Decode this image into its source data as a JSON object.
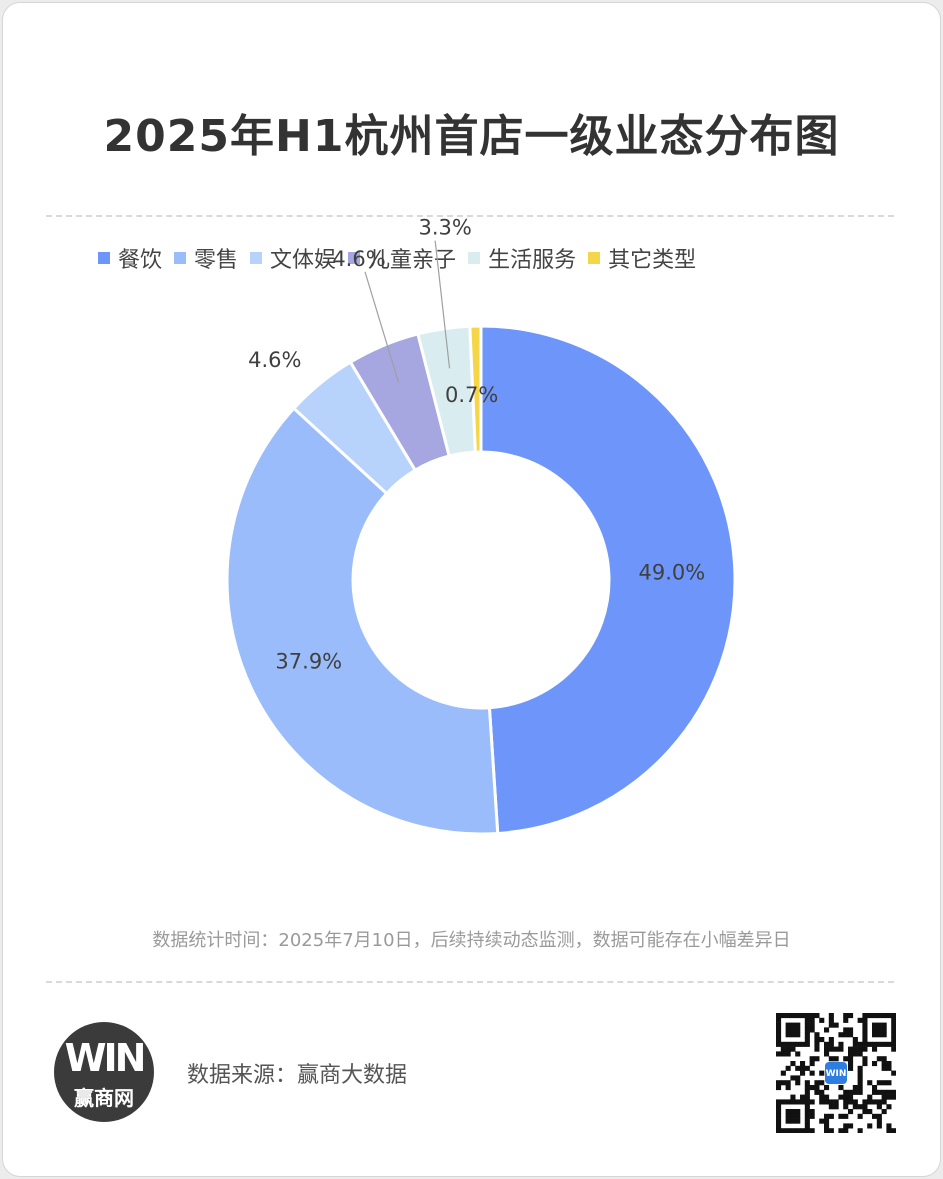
{
  "title": "2025年H1杭州首店一级业态分布图",
  "chart_data": {
    "type": "pie",
    "donut": true,
    "title": "2025年H1杭州首店一级业态分布图",
    "categories": [
      "餐饮",
      "零售",
      "文体娱",
      "儿童亲子",
      "生活服务",
      "其它类型"
    ],
    "values": [
      49.0,
      37.9,
      4.6,
      4.6,
      3.3,
      0.7
    ],
    "labels": [
      "49.0%",
      "37.9%",
      "4.6%",
      "4.6%",
      "3.3%",
      "0.7%"
    ],
    "colors": [
      "#6e96fa",
      "#9bbcfb",
      "#b8d3fb",
      "#a6a6e0",
      "#d9ecef",
      "#f6d649"
    ],
    "legend_position": "top"
  },
  "note": "数据统计时间：2025年7月10日，后续持续动态监测，数据可能存在小幅差异日",
  "source": "数据来源：赢商大数据",
  "logo": {
    "mark": "WIN",
    "text": "赢商网"
  },
  "qr": {
    "badge": "WIN"
  }
}
